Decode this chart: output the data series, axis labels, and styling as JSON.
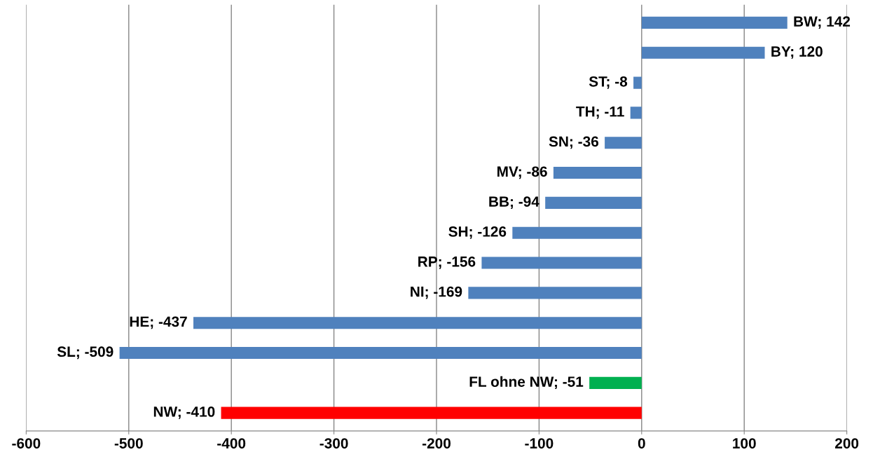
{
  "chart_data": {
    "type": "bar",
    "orientation": "horizontal",
    "categories": [
      null,
      null,
      null,
      null,
      null,
      null,
      null,
      null,
      null,
      null,
      null,
      null,
      null,
      null
    ],
    "values": [
      142,
      120,
      -8,
      -11,
      -36,
      -86,
      -94,
      -126,
      -156,
      -169,
      -437,
      -509,
      -51,
      -410
    ],
    "colors": [
      "#4f81bd",
      "#4f81bd",
      "#4f81bd",
      "#4f81bd",
      "#4f81bd",
      "#4f81bd",
      "#4f81bd",
      "#4f81bd",
      "#4f81bd",
      "#4f81bd",
      "#4f81bd",
      "#4f81bd",
      "#00b050",
      "#ff0000"
    ],
    "value_labels": [
      "BW; 142",
      "BY; 120",
      "ST; -8",
      "TH; -11",
      "SN; -36",
      "MV; -86",
      "BB; -94",
      "SH; -126",
      "RP; -156",
      "NI; -169",
      "HE; -437",
      "SL; -509",
      "FL ohne NW; -51",
      "NW; -410"
    ],
    "xlim": [
      -600,
      200
    ],
    "xticks": [
      -600,
      -500,
      -400,
      -300,
      -200,
      -100,
      0,
      100,
      200
    ],
    "grid": "x",
    "legend": false
  }
}
